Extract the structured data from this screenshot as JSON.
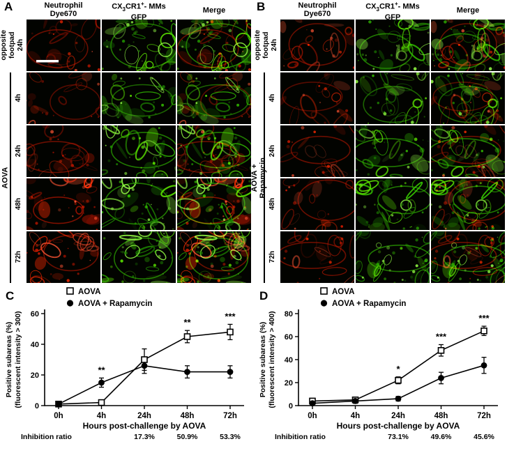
{
  "figure": {
    "panels": {
      "A": {
        "label": "A"
      },
      "B": {
        "label": "B"
      }
    }
  },
  "col_headers": {
    "neutrophil": {
      "line1": "Neutrophil",
      "line2": "Dye670"
    },
    "gfp": {
      "pre": "CX",
      "sub": "3",
      "mid": "CR1",
      "sup": "+",
      "post": "- MMs",
      "line2": "GFP"
    },
    "merge": {
      "line1": "Merge"
    }
  },
  "micrographs": {
    "columns": [
      "red",
      "green",
      "merge"
    ],
    "A": {
      "group1_label": "opposite\nfootpad",
      "group2_label": "AOVA",
      "rows": [
        {
          "time": "24h",
          "group": "opposite footpad",
          "red": 0.45,
          "green": 0.95,
          "seed_red": 101,
          "seed_green": 102,
          "scale_bar": true
        },
        {
          "time": "4h",
          "group": "AOVA",
          "red": 0.3,
          "green": 0.62,
          "seed_red": 111,
          "seed_green": 112
        },
        {
          "time": "24h",
          "group": "AOVA",
          "red": 0.55,
          "green": 0.8,
          "seed_red": 121,
          "seed_green": 122
        },
        {
          "time": "48h",
          "group": "AOVA",
          "red": 0.85,
          "green": 0.95,
          "seed_red": 131,
          "seed_green": 132
        },
        {
          "time": "72h",
          "group": "AOVA",
          "red": 0.65,
          "green": 0.92,
          "seed_red": 141,
          "seed_green": 142
        }
      ]
    },
    "B": {
      "group1_label": "opposite\nfootpad",
      "group2_label": "AOVA + Rapamycin",
      "rows": [
        {
          "time": "24h",
          "group": "opposite footpad",
          "red": 0.45,
          "green": 0.9,
          "seed_red": 201,
          "seed_green": 202
        },
        {
          "time": "4h",
          "group": "AOVA + Rapamycin",
          "red": 0.3,
          "green": 0.66,
          "seed_red": 211,
          "seed_green": 212
        },
        {
          "time": "24h",
          "group": "AOVA + Rapamycin",
          "red": 0.34,
          "green": 0.72,
          "seed_red": 221,
          "seed_green": 222
        },
        {
          "time": "48h",
          "group": "AOVA + Rapamycin",
          "red": 0.42,
          "green": 0.88,
          "seed_red": 231,
          "seed_green": 232
        },
        {
          "time": "72h",
          "group": "AOVA + Rapamycin",
          "red": 0.36,
          "green": 0.86,
          "seed_red": 241,
          "seed_green": 242
        }
      ]
    }
  },
  "chart_data": [
    {
      "panel": "C",
      "type": "line",
      "categories": [
        "0h",
        "4h",
        "24h",
        "48h",
        "72h"
      ],
      "series": [
        {
          "name": "AOVA",
          "marker": "open-square",
          "values": [
            1,
            2,
            30,
            45,
            48
          ],
          "errors": [
            0.5,
            1,
            7,
            4,
            5
          ]
        },
        {
          "name": "AOVA + Rapamycin",
          "marker": "filled-circle",
          "values": [
            1,
            15,
            26,
            22,
            22
          ],
          "errors": [
            0.5,
            3,
            5,
            4,
            4
          ]
        }
      ],
      "ylabel": [
        "Positive subareas (%)",
        "(fluorescent intensity > 300)"
      ],
      "xlabel": "Hours post-challenge by AOVA",
      "ylim": [
        0,
        60
      ],
      "yticks": [
        0,
        20,
        40,
        60
      ],
      "grid": false,
      "legend_position": "top-left",
      "significance": [
        {
          "category": "4h",
          "label": "**"
        },
        {
          "category": "48h",
          "label": "**"
        },
        {
          "category": "72h",
          "label": "***"
        }
      ],
      "inhibition": {
        "label": "Inhibition ratio",
        "values": [
          {
            "category": "24h",
            "value": "17.3%"
          },
          {
            "category": "48h",
            "value": "50.9%"
          },
          {
            "category": "72h",
            "value": "53.3%"
          }
        ]
      }
    },
    {
      "panel": "D",
      "type": "line",
      "categories": [
        "0h",
        "4h",
        "24h",
        "48h",
        "72h"
      ],
      "series": [
        {
          "name": "AOVA",
          "marker": "open-square",
          "values": [
            4,
            5,
            22,
            48,
            65
          ],
          "errors": [
            2,
            2,
            3,
            5,
            4
          ]
        },
        {
          "name": "AOVA + Rapamycin",
          "marker": "filled-circle",
          "values": [
            2,
            4,
            6,
            24,
            35
          ],
          "errors": [
            1,
            2,
            2,
            5,
            7
          ]
        }
      ],
      "ylabel": [
        "Positive subareas (%)",
        "(fluorescent intensity > 400)"
      ],
      "xlabel": "Hours post-challenge by AOVA",
      "ylim": [
        0,
        80
      ],
      "yticks": [
        0,
        20,
        40,
        60,
        80
      ],
      "grid": false,
      "legend_position": "top-left",
      "significance": [
        {
          "category": "24h",
          "label": "*"
        },
        {
          "category": "48h",
          "label": "***"
        },
        {
          "category": "72h",
          "label": "***"
        }
      ],
      "inhibition": {
        "label": "Inhibition ratio",
        "values": [
          {
            "category": "24h",
            "value": "73.1%"
          },
          {
            "category": "48h",
            "value": "49.6%"
          },
          {
            "category": "72h",
            "value": "45.6%"
          }
        ]
      }
    }
  ],
  "colors": {
    "neutrophil_red": "#d41900",
    "mm_green": "#36c800",
    "background": "#000000",
    "line": "#000000"
  }
}
